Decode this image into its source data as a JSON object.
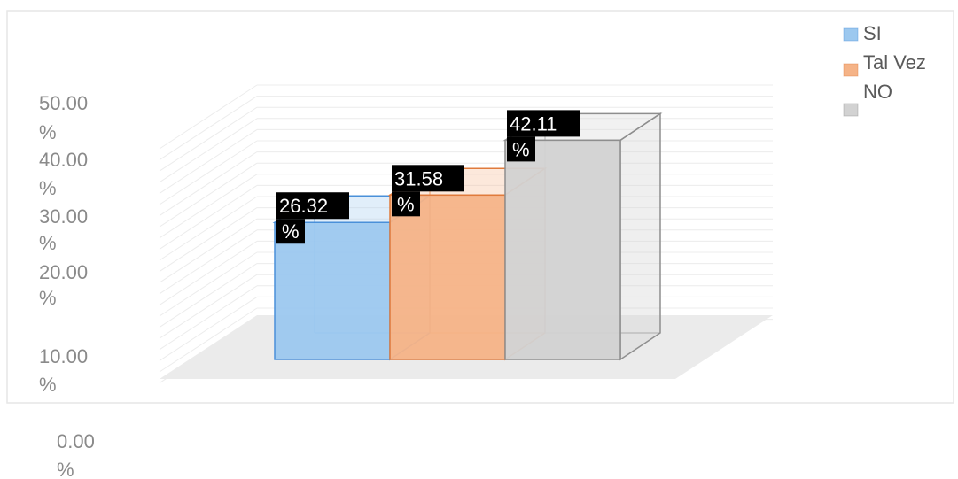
{
  "chart_data": {
    "type": "bar",
    "title": "",
    "xlabel": "",
    "ylabel": "",
    "categories": [
      "SI",
      "Tal Vez",
      "NO"
    ],
    "values": [
      26.32,
      31.58,
      42.11
    ],
    "value_labels": [
      "26.32 %",
      "31.58 %",
      "42.11 %"
    ],
    "ylim": [
      0,
      50
    ],
    "y_ticks": [
      "0.00 %",
      "10.00 %",
      "20.00 %",
      "30.00 %",
      "40.00 %",
      "50.00 %"
    ],
    "three_d": true,
    "grid": true,
    "legend": {
      "position": "top-right",
      "entries": [
        "SI",
        "Tal Vez",
        "NO"
      ]
    },
    "colors": {
      "SI": "#9cc8ef",
      "Tal Vez": "#f5b387",
      "NO": "#d2d2d2"
    },
    "edge_colors": {
      "SI": "#4a90d9",
      "Tal Vez": "#e07b3c",
      "NO": "#8e8e8e"
    }
  }
}
